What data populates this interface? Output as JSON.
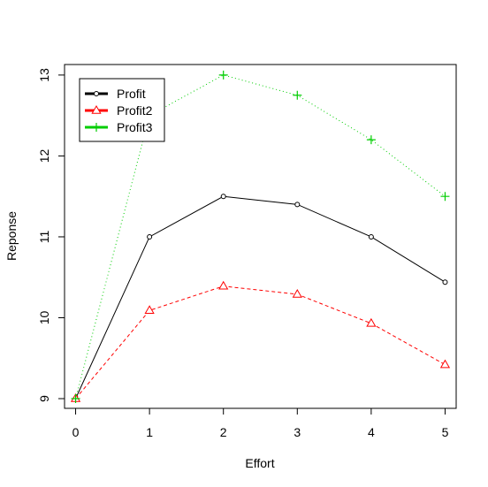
{
  "chart_data": {
    "type": "line",
    "title": "",
    "xlabel": "Effort",
    "ylabel": "Reponse",
    "x": [
      0,
      1,
      2,
      3,
      4,
      5
    ],
    "xticks": [
      "0",
      "1",
      "2",
      "3",
      "4",
      "5"
    ],
    "yticks": [
      "9",
      "10",
      "11",
      "12",
      "13"
    ],
    "xlim": [
      -0.15,
      5.15
    ],
    "ylim": [
      8.88,
      13.13
    ],
    "grid": false,
    "legend_position": "top-left",
    "series": [
      {
        "name": "Profit",
        "values": [
          9.0,
          11.0,
          11.5,
          11.4,
          11.0,
          10.44
        ],
        "color": "#000000",
        "line_style": "solid",
        "marker": "circle"
      },
      {
        "name": "Profit2",
        "values": [
          9.0,
          10.09,
          10.39,
          10.29,
          9.93,
          9.42
        ],
        "color": "#ff0000",
        "line_style": "dashed",
        "marker": "triangle"
      },
      {
        "name": "Profit3",
        "values": [
          9.0,
          12.5,
          13.0,
          12.75,
          12.2,
          11.5
        ],
        "color": "#00cd00",
        "line_style": "dotted",
        "marker": "plus"
      }
    ]
  }
}
